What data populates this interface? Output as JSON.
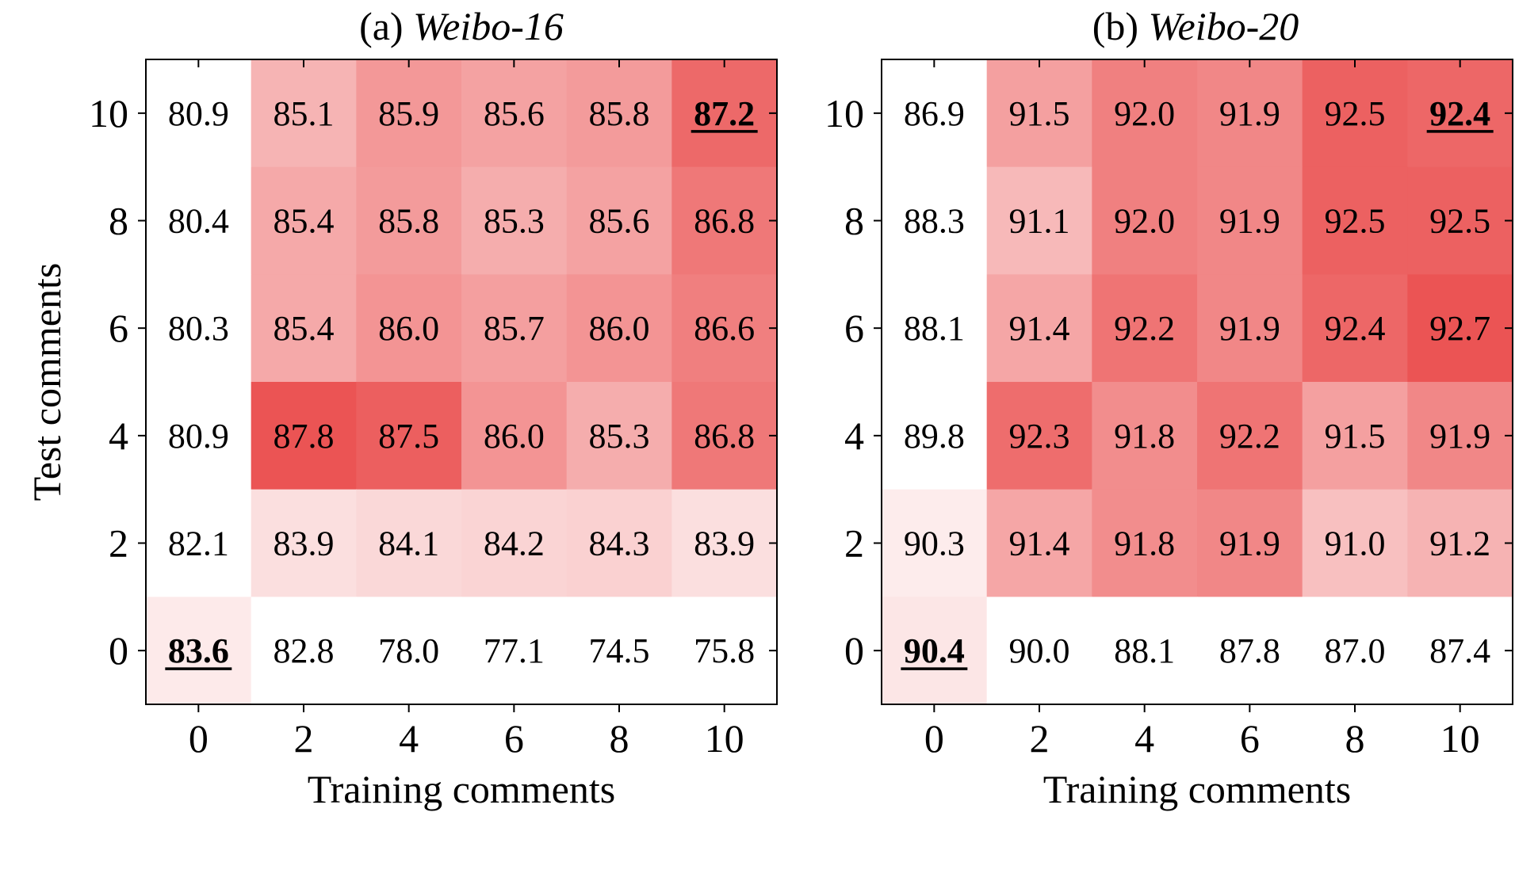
{
  "chart_data": [
    {
      "type": "heatmap",
      "title_prefix": "(a) ",
      "title_name": "Weibo-16",
      "xlabel": "Training comments",
      "ylabel": "Test comments",
      "x": [
        0,
        2,
        4,
        6,
        8,
        10
      ],
      "y": [
        10,
        8,
        6,
        4,
        2,
        0
      ],
      "x_ticks": [
        "0",
        "2",
        "4",
        "6",
        "8",
        "10"
      ],
      "y_ticks": [
        "10",
        "8",
        "6",
        "4",
        "2",
        "0"
      ],
      "values": [
        [
          80.9,
          85.1,
          85.9,
          85.6,
          85.8,
          87.2
        ],
        [
          80.4,
          85.4,
          85.8,
          85.3,
          85.6,
          86.8
        ],
        [
          80.3,
          85.4,
          86.0,
          85.7,
          86.0,
          86.6
        ],
        [
          80.9,
          87.8,
          87.5,
          86.0,
          85.3,
          86.8
        ],
        [
          82.1,
          83.9,
          84.1,
          84.2,
          84.3,
          83.9
        ],
        [
          83.6,
          82.8,
          78.0,
          77.1,
          74.5,
          75.8
        ]
      ],
      "highlighted": [
        {
          "y": 10,
          "x": 10,
          "value": 87.2
        },
        {
          "y": 0,
          "x": 0,
          "value": 83.6
        }
      ],
      "color_range": [
        83.0,
        87.8
      ],
      "colors": {
        "low": "#ffffff",
        "high": "#eb5454"
      }
    },
    {
      "type": "heatmap",
      "title_prefix": "(b) ",
      "title_name": "Weibo-20",
      "xlabel": "Training comments",
      "ylabel": "",
      "x": [
        0,
        2,
        4,
        6,
        8,
        10
      ],
      "y": [
        10,
        8,
        6,
        4,
        2,
        0
      ],
      "x_ticks": [
        "0",
        "2",
        "4",
        "6",
        "8",
        "10"
      ],
      "y_ticks": [
        "10",
        "8",
        "6",
        "4",
        "2",
        "0"
      ],
      "values": [
        [
          86.9,
          91.5,
          92.0,
          91.9,
          92.5,
          92.4
        ],
        [
          88.3,
          91.1,
          92.0,
          91.9,
          92.5,
          92.5
        ],
        [
          88.1,
          91.4,
          92.2,
          91.9,
          92.4,
          92.7
        ],
        [
          89.8,
          92.3,
          91.8,
          92.2,
          91.5,
          91.9
        ],
        [
          90.3,
          91.4,
          91.8,
          91.9,
          91.0,
          91.2
        ],
        [
          90.4,
          90.0,
          88.1,
          87.8,
          87.0,
          87.4
        ]
      ],
      "highlighted": [
        {
          "y": 10,
          "x": 10,
          "value": 92.4
        },
        {
          "y": 0,
          "x": 0,
          "value": 90.4
        }
      ],
      "color_range": [
        90.0,
        92.7
      ],
      "colors": {
        "low": "#ffffff",
        "high": "#eb5454"
      }
    }
  ]
}
